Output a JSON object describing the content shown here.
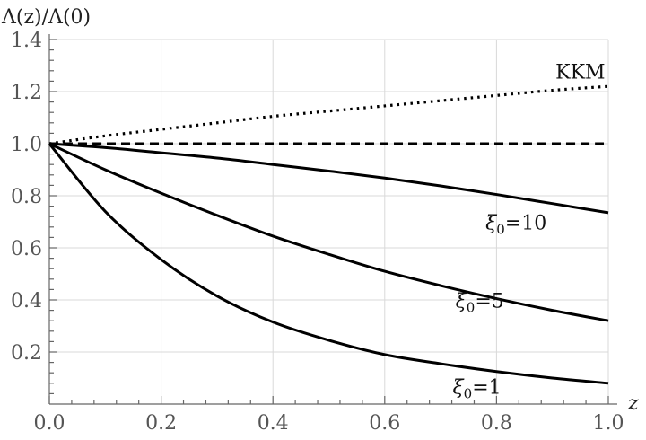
{
  "chart_data": {
    "type": "line",
    "title": "",
    "xlabel": "z",
    "ylabel": "Λ(z)/Λ(0)",
    "xlim": [
      0,
      1
    ],
    "ylim": [
      0,
      1.4
    ],
    "x_ticks": [
      "0.0",
      "0.2",
      "0.4",
      "0.6",
      "0.8",
      "1.0"
    ],
    "y_ticks": [
      "0.2",
      "0.4",
      "0.6",
      "0.8",
      "1.0",
      "1.2",
      "1.4"
    ],
    "grid": true,
    "x": [
      0.0,
      0.1,
      0.2,
      0.3,
      0.4,
      0.5,
      0.6,
      0.7,
      0.8,
      0.9,
      1.0
    ],
    "series": [
      {
        "label": "KKM",
        "style": "dotted",
        "values": [
          1.0,
          1.03,
          1.055,
          1.08,
          1.105,
          1.125,
          1.145,
          1.165,
          1.185,
          1.205,
          1.22
        ]
      },
      {
        "label": "",
        "style": "dashed",
        "values": [
          1.0,
          1.0,
          1.0,
          1.0,
          1.0,
          1.0,
          1.0,
          1.0,
          1.0,
          1.0,
          1.0
        ]
      },
      {
        "label": "ξ0=10",
        "style": "solid",
        "values": [
          1.0,
          0.985,
          0.965,
          0.945,
          0.92,
          0.895,
          0.868,
          0.838,
          0.805,
          0.77,
          0.735
        ]
      },
      {
        "label": "ξ0=5",
        "style": "solid",
        "values": [
          1.0,
          0.9,
          0.81,
          0.725,
          0.645,
          0.575,
          0.51,
          0.455,
          0.405,
          0.36,
          0.32
        ]
      },
      {
        "label": "ξ0=1",
        "style": "solid",
        "values": [
          1.0,
          0.74,
          0.555,
          0.415,
          0.315,
          0.245,
          0.19,
          0.155,
          0.125,
          0.1,
          0.08
        ]
      }
    ],
    "annotations": [
      {
        "text": "KKM",
        "x": 0.95,
        "y": 1.25
      },
      {
        "text_main": "ξ",
        "text_sub": "0",
        "text_rest": "=10",
        "x": 0.835,
        "y": 0.67
      },
      {
        "text_main": "ξ",
        "text_sub": "0",
        "text_rest": "=5",
        "x": 0.77,
        "y": 0.37
      },
      {
        "text_main": "ξ",
        "text_sub": "0",
        "text_rest": "=1",
        "x": 0.765,
        "y": 0.04
      }
    ]
  }
}
